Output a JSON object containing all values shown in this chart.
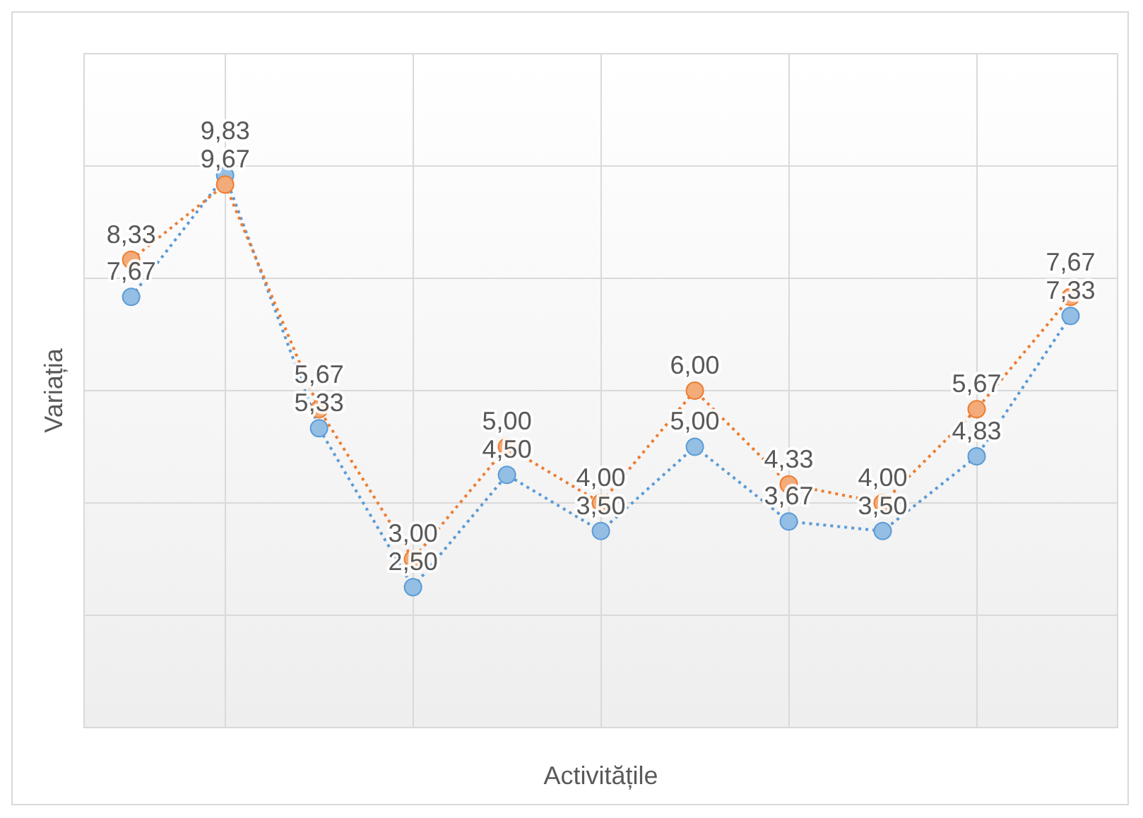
{
  "chart_data": {
    "type": "line",
    "xlabel": "Activitățile",
    "ylabel": "Variația",
    "categories": [
      null,
      null,
      null,
      null,
      null,
      null,
      null,
      null,
      null,
      null,
      null
    ],
    "ylim": [
      0,
      12
    ],
    "yticks": [
      {
        "value": 0,
        "label": null
      },
      {
        "value": 2,
        "label": null
      },
      {
        "value": 4,
        "label": null
      },
      {
        "value": 6,
        "label": null
      },
      {
        "value": 8,
        "label": null
      },
      {
        "value": 10,
        "label": null
      },
      {
        "value": 12,
        "label": null
      }
    ],
    "grid": true,
    "legend": false,
    "marker": "circle",
    "line_style": "dotted",
    "series": [
      {
        "color": "#ed7d31",
        "values": [
          8.33,
          9.67,
          5.67,
          3.0,
          5.0,
          4.0,
          6.0,
          4.33,
          4.0,
          5.67,
          7.67
        ],
        "value_labels": [
          "8,33",
          "9,67",
          "5,67",
          "3,00",
          "5,00",
          "4,00",
          "6,00",
          "4,33",
          "4,00",
          "5,67",
          "7,67"
        ]
      },
      {
        "color": "#5b9bd5",
        "values": [
          7.67,
          9.83,
          5.33,
          2.5,
          4.5,
          3.5,
          5.0,
          3.67,
          3.5,
          4.83,
          7.33
        ],
        "value_labels": [
          "7,67",
          "9,83",
          "5,33",
          "2,50",
          "4,50",
          "3,50",
          "5,00",
          "3,67",
          "3,50",
          "4,83",
          "7,33"
        ]
      }
    ]
  }
}
